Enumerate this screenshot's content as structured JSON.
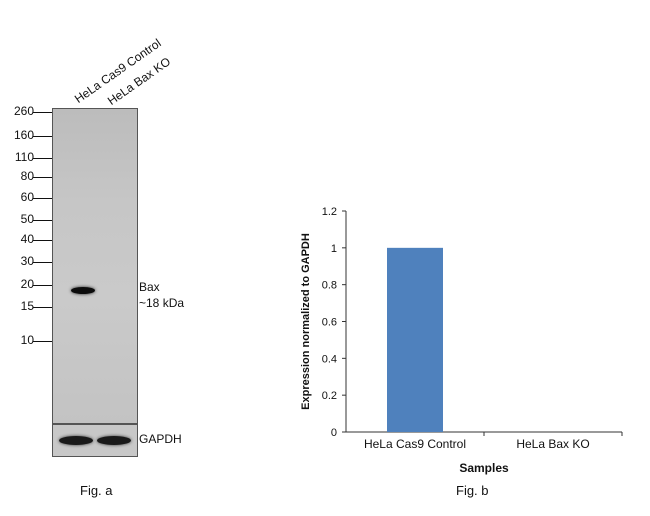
{
  "western_blot": {
    "lanes": [
      "HeLa Cas9 Control",
      "HeLa Bax KO"
    ],
    "mw_markers": [
      "260",
      "160",
      "110",
      "80",
      "60",
      "50",
      "40",
      "30",
      "20",
      "15",
      "10"
    ],
    "band_label_line1": "Bax",
    "band_label_line2": "~18 kDa",
    "loading_control": "GAPDH",
    "figure_label": "Fig. a"
  },
  "chart_data": {
    "type": "bar",
    "categories": [
      "HeLa Cas9 Control",
      "HeLa Bax KO"
    ],
    "values": [
      1.0,
      0.0
    ],
    "xlabel": "Samples",
    "ylabel": "Expression normalized to GAPDH",
    "ylim": [
      0,
      1.2
    ],
    "yticks": [
      "0",
      "0.2",
      "0.4",
      "0.6",
      "0.8",
      "1",
      "1.2"
    ],
    "bar_color": "#4f81bd",
    "grid": false,
    "figure_label": "Fig. b"
  }
}
